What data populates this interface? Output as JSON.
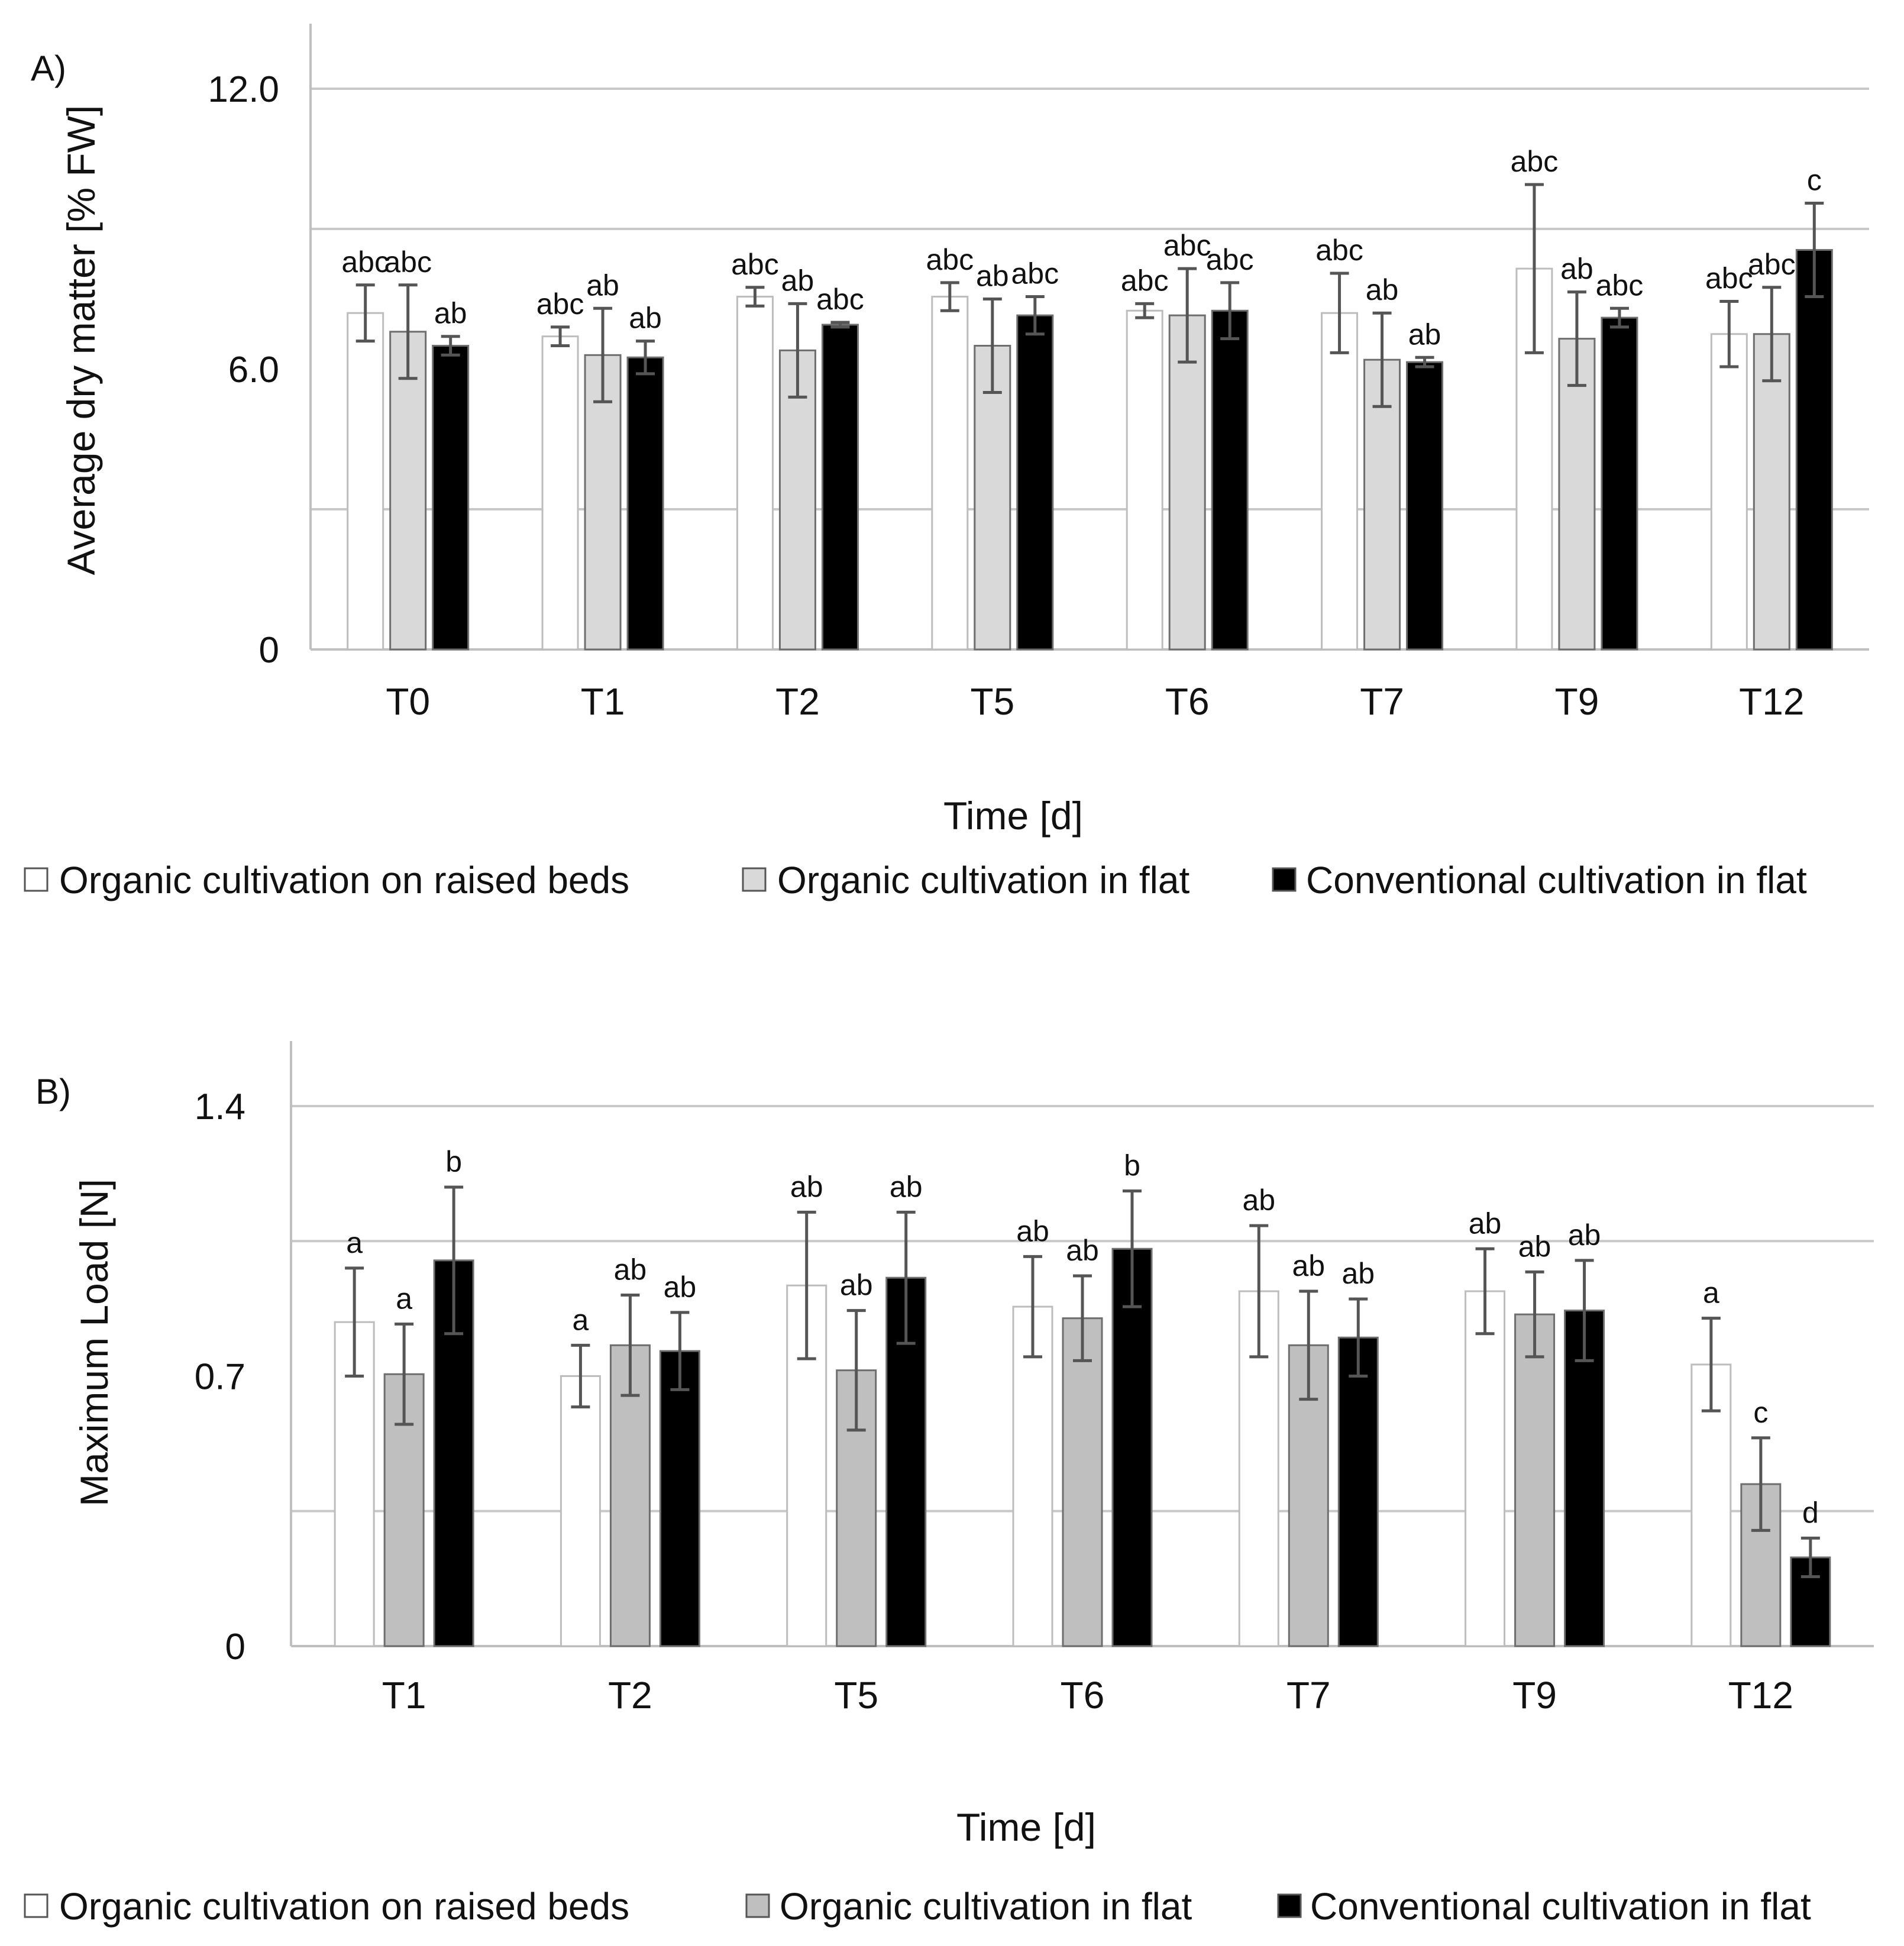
{
  "charts": [
    {
      "panel_label": "A)",
      "ylabel": "Average dry matter [% FW]",
      "xlabel": "Time [d]",
      "y_tick_labels": [
        "0",
        "6.0",
        "12.0"
      ],
      "legend": [
        {
          "label": "Organic cultivation on raised beds",
          "color": "#ffffff"
        },
        {
          "label": "Organic cultivation in flat",
          "color": "#d9d9d9"
        },
        {
          "label": "Conventional cultivation in flat",
          "color": "#000000"
        }
      ]
    },
    {
      "panel_label": "B)",
      "ylabel": "Maximum Load [N]",
      "xlabel": "Time [d]",
      "y_tick_labels": [
        "0",
        "0.7",
        "1.4"
      ],
      "legend": [
        {
          "label": "Organic cultivation on raised beds",
          "color": "#ffffff"
        },
        {
          "label": "Organic cultivation in flat",
          "color": "#bfbfbf"
        },
        {
          "label": "Conventional cultivation in flat",
          "color": "#000000"
        }
      ]
    }
  ],
  "chart_data": [
    {
      "type": "bar",
      "ylim": [
        0,
        12
      ],
      "grid": true,
      "legend_position": "bottom",
      "categories": [
        "T0",
        "T1",
        "T2",
        "T5",
        "T6",
        "T7",
        "T9",
        "T12"
      ],
      "series": [
        {
          "name": "Organic cultivation on raised beds",
          "color": "#ffffff",
          "values": [
            7.2,
            6.7,
            7.55,
            7.55,
            7.25,
            7.2,
            8.15,
            6.75
          ],
          "errors": [
            0.6,
            0.2,
            0.2,
            0.3,
            0.15,
            0.85,
            1.8,
            0.7
          ],
          "letters": [
            "abc",
            "abc",
            "abc",
            "abc",
            "abc",
            "abc",
            "abc",
            "abc"
          ]
        },
        {
          "name": "Organic cultivation in flat",
          "color": "#d9d9d9",
          "values": [
            6.8,
            6.3,
            6.4,
            6.5,
            7.15,
            6.2,
            6.65,
            6.75
          ],
          "errors": [
            1.0,
            1.0,
            1.0,
            1.0,
            1.0,
            1.0,
            1.0,
            1.0
          ],
          "letters": [
            "abc",
            "ab",
            "ab",
            "ab",
            "abc",
            "ab",
            "ab",
            "abc"
          ]
        },
        {
          "name": "Conventional cultivation in flat",
          "color": "#000000",
          "values": [
            6.5,
            6.25,
            6.95,
            7.15,
            7.25,
            6.15,
            7.1,
            8.55
          ],
          "errors": [
            0.2,
            0.35,
            0.05,
            0.4,
            0.6,
            0.1,
            0.2,
            1.0
          ],
          "letters": [
            "ab",
            "ab",
            "abc",
            "abc",
            "abc",
            "ab",
            "abc",
            "c"
          ]
        }
      ]
    },
    {
      "type": "bar",
      "ylim": [
        0,
        1.4
      ],
      "grid": true,
      "legend_position": "bottom",
      "categories": [
        "T1",
        "T2",
        "T5",
        "T6",
        "T7",
        "T9",
        "T12"
      ],
      "series": [
        {
          "name": "Organic cultivation on raised beds",
          "color": "#ffffff",
          "values": [
            0.84,
            0.7,
            0.935,
            0.88,
            0.92,
            0.92,
            0.73
          ],
          "errors": [
            0.14,
            0.08,
            0.19,
            0.13,
            0.17,
            0.11,
            0.12
          ],
          "letters": [
            "a",
            "a",
            "ab",
            "ab",
            "ab",
            "ab",
            "a"
          ]
        },
        {
          "name": "Organic cultivation in flat",
          "color": "#bfbfbf",
          "values": [
            0.705,
            0.78,
            0.715,
            0.85,
            0.78,
            0.86,
            0.42
          ],
          "errors": [
            0.13,
            0.13,
            0.155,
            0.11,
            0.14,
            0.11,
            0.12
          ],
          "letters": [
            "a",
            "ab",
            "ab",
            "ab",
            "ab",
            "ab",
            "c"
          ]
        },
        {
          "name": "Conventional cultivation in flat",
          "color": "#000000",
          "values": [
            1.0,
            0.765,
            0.955,
            1.03,
            0.8,
            0.87,
            0.23
          ],
          "errors": [
            0.19,
            0.1,
            0.17,
            0.15,
            0.1,
            0.13,
            0.05
          ],
          "letters": [
            "b",
            "ab",
            "ab",
            "b",
            "ab",
            "ab",
            "d"
          ]
        }
      ]
    }
  ]
}
